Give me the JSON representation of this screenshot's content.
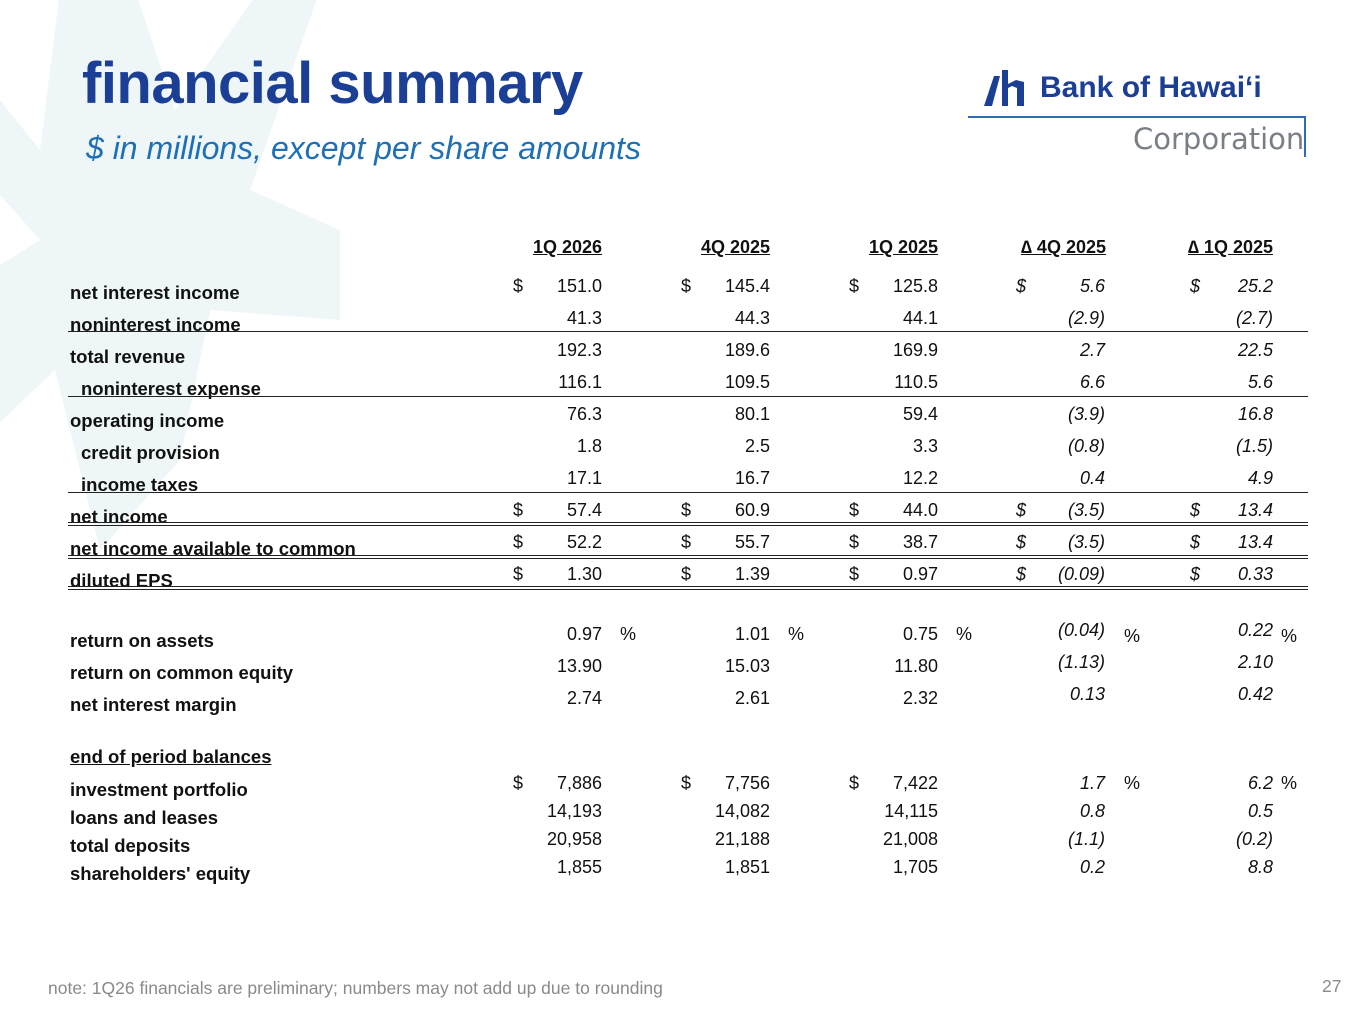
{
  "title": "financial summary",
  "subtitle": "$ in millions, except per share amounts",
  "logo": {
    "name": "Bank of Hawai‘i",
    "corporation": "Corporation",
    "icon": "bank-of-hawaii-logo-icon"
  },
  "colors": {
    "title": "#1b3f94",
    "subtitle": "#1f6fb5",
    "background_shape": "#eef6f8"
  },
  "columns": [
    "1Q 2026",
    "4Q 2025",
    "1Q 2025",
    "∆ 4Q 2025",
    "∆ 1Q 2025"
  ],
  "rows": [
    {
      "label": "net interest income",
      "cur": [
        "$",
        "$",
        "$",
        "$",
        "$"
      ],
      "values": [
        "151.0",
        "145.4",
        "125.8",
        "5.6",
        "25.2"
      ]
    },
    {
      "label": "noninterest income",
      "values": [
        "41.3",
        "44.3",
        "44.1",
        "(2.9)",
        "(2.7)"
      ]
    },
    {
      "label": "total revenue",
      "values": [
        "192.3",
        "189.6",
        "169.9",
        "2.7",
        "22.5"
      ]
    },
    {
      "label": "noninterest expense",
      "values": [
        "116.1",
        "109.5",
        "110.5",
        "6.6",
        "5.6"
      ]
    },
    {
      "label": "operating income",
      "values": [
        "76.3",
        "80.1",
        "59.4",
        "(3.9)",
        "16.8"
      ]
    },
    {
      "label": "credit provision",
      "values": [
        "1.8",
        "2.5",
        "3.3",
        "(0.8)",
        "(1.5)"
      ]
    },
    {
      "label": "income taxes",
      "values": [
        "17.1",
        "16.7",
        "12.2",
        "0.4",
        "4.9"
      ]
    },
    {
      "label": "net income",
      "cur": [
        "$",
        "$",
        "$",
        "$",
        "$"
      ],
      "values": [
        "57.4",
        "60.9",
        "44.0",
        "(3.5)",
        "13.4"
      ]
    },
    {
      "label": "net income available to common",
      "cur": [
        "$",
        "$",
        "$",
        "$",
        "$"
      ],
      "values": [
        "52.2",
        "55.7",
        "38.7",
        "(3.5)",
        "13.4"
      ]
    },
    {
      "label": "diluted EPS",
      "cur": [
        "$",
        "$",
        "$",
        "$",
        "$"
      ],
      "values": [
        "1.30",
        "1.39",
        "0.97",
        "(0.09)",
        "0.33"
      ]
    }
  ],
  "ratios": [
    {
      "label": "return on assets",
      "values": [
        "0.97",
        "1.01",
        "0.75",
        "(0.04)",
        "0.22"
      ],
      "pct": "%"
    },
    {
      "label": "return on common equity",
      "values": [
        "13.90",
        "15.03",
        "11.80",
        "(1.13)",
        "2.10"
      ]
    },
    {
      "label": "net interest margin",
      "values": [
        "2.74",
        "2.61",
        "2.32",
        "0.13",
        "0.42"
      ]
    }
  ],
  "balances_heading": "end of period balances",
  "balances": [
    {
      "label": "investment portfolio",
      "cur": [
        "$",
        "$",
        "$"
      ],
      "values": [
        "7,886",
        "7,756",
        "7,422",
        "1.7",
        "6.2"
      ],
      "pct": "%"
    },
    {
      "label": "loans and leases",
      "values": [
        "14,193",
        "14,082",
        "14,115",
        "0.8",
        "0.5"
      ]
    },
    {
      "label": "total deposits",
      "values": [
        "20,958",
        "21,188",
        "21,008",
        "(1.1)",
        "(0.2)"
      ]
    },
    {
      "label": "shareholders' equity",
      "values": [
        "1,855",
        "1,851",
        "1,705",
        "0.2",
        "8.8"
      ]
    }
  ],
  "note": "note: 1Q26 financials are preliminary; numbers may not add up due to rounding",
  "page_number": "27"
}
